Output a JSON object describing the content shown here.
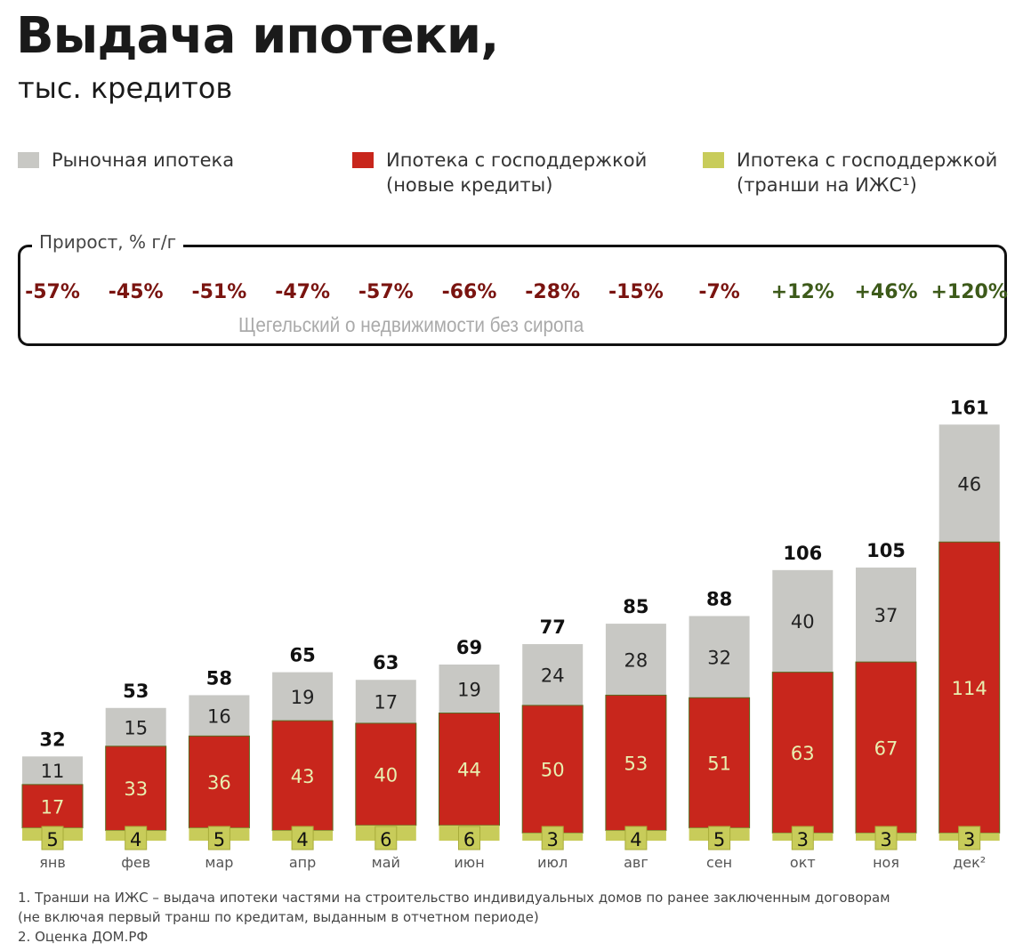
{
  "header": {
    "title": "Выдача ипотеки,",
    "subtitle": "тыс. кредитов"
  },
  "legend": [
    {
      "label": "Рыночная ипотека",
      "color": "#c8c8c4"
    },
    {
      "label": "Ипотека с господдержкой",
      "label2": "(новые кредиты)",
      "color": "#c8261c"
    },
    {
      "label": "Ипотека с господдержкой",
      "label2": "(транши на ИЖС¹)",
      "color": "#c8cc5a"
    }
  ],
  "growth_box": {
    "label": "Прирост, % г/г",
    "watermark": "Щегельский о недвижимости без сиропа"
  },
  "chart_data": {
    "type": "bar",
    "stacked": true,
    "categories": [
      "янв",
      "фев",
      "мар",
      "апр",
      "май",
      "июн",
      "июл",
      "авг",
      "сен",
      "окт",
      "ноя",
      "дек²"
    ],
    "series": [
      {
        "name": "Ипотека с господдержкой (транши на ИЖС¹)",
        "color": "#c8cc5a",
        "values": [
          5,
          4,
          5,
          4,
          6,
          6,
          3,
          4,
          5,
          3,
          3,
          3
        ]
      },
      {
        "name": "Ипотека с господдержкой (новые кредиты)",
        "color": "#c8261c",
        "values": [
          17,
          33,
          36,
          43,
          40,
          44,
          50,
          53,
          51,
          63,
          67,
          114
        ]
      },
      {
        "name": "Рыночная ипотека",
        "color": "#c8c8c4",
        "values": [
          11,
          15,
          16,
          19,
          17,
          19,
          24,
          28,
          32,
          40,
          37,
          46
        ]
      }
    ],
    "totals": [
      32,
      53,
      58,
      65,
      63,
      69,
      77,
      85,
      88,
      106,
      105,
      161
    ],
    "growth_yoy": [
      "-57%",
      "-45%",
      "-51%",
      "-47%",
      "-57%",
      "-66%",
      "-28%",
      "-15%",
      "-7%",
      "+12%",
      "+46%",
      "+120%"
    ],
    "growth_colors": {
      "negative": "#7a1410",
      "positive": "#3d5a1a"
    },
    "ylim": [
      0,
      161
    ]
  },
  "notes": [
    "1. Транши на ИЖС – выдача ипотеки частями на строительство индивидуальных домов по ранее заключенным договорам",
    "(не включая первый транш по кредитам, выданным в отчетном периоде)",
    "2. Оценка ДОМ.РФ"
  ]
}
